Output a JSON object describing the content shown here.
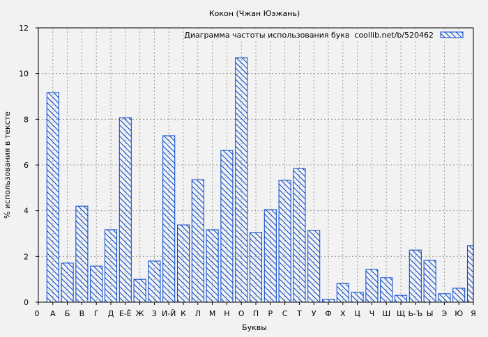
{
  "chart_data": {
    "type": "bar",
    "title": "Кокон (Чжан Юэжань)",
    "xlabel": "Буквы",
    "ylabel": "% использования в тексте",
    "legend": {
      "label": "Диаграмма частоты использования букв  coollib.net/b/520462",
      "placement": "top-right"
    },
    "x_tick_zero": "0",
    "categories": [
      "А",
      "Б",
      "В",
      "Г",
      "Д",
      "Е-Ё",
      "Ж",
      "З",
      "И-Й",
      "К",
      "Л",
      "М",
      "Н",
      "О",
      "П",
      "Р",
      "С",
      "Т",
      "У",
      "Ф",
      "Х",
      "Ц",
      "Ч",
      "Ш",
      "Щ",
      "Ь-Ъ",
      "Ы",
      "Э",
      "Ю",
      "Я"
    ],
    "values": [
      9.17,
      1.71,
      4.2,
      1.58,
      3.17,
      8.07,
      1.0,
      1.8,
      7.28,
      3.38,
      5.36,
      3.17,
      6.64,
      10.69,
      3.05,
      4.05,
      5.33,
      5.85,
      3.14,
      0.12,
      0.82,
      0.43,
      1.43,
      1.07,
      0.3,
      2.28,
      1.83,
      0.37,
      0.61,
      2.47
    ],
    "ylim": [
      0,
      12
    ],
    "yticks": [
      0,
      2,
      4,
      6,
      8,
      10,
      12
    ],
    "grid": true,
    "bar_color": "#0044cc"
  }
}
